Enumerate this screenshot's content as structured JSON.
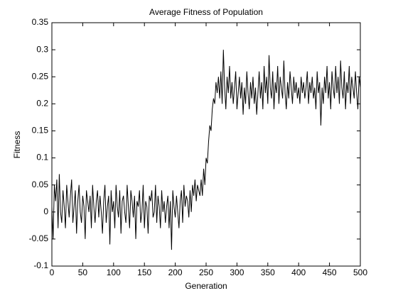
{
  "chart_data": {
    "type": "line",
    "title": "Average Fitness of Population",
    "x_label": "Generation",
    "y_label": "Fitness",
    "color": "#000000",
    "xlim": [
      0,
      500
    ],
    "xticks": [
      0,
      50,
      100,
      150,
      200,
      250,
      300,
      350,
      400,
      450,
      500
    ],
    "ylim": [
      -0.1,
      0.35
    ],
    "yticks": [
      -0.1,
      -0.05,
      0,
      0.05,
      0.1,
      0.15,
      0.2,
      0.25,
      0.3,
      0.35
    ],
    "x": [
      0,
      2,
      4,
      6,
      8,
      10,
      12,
      14,
      16,
      18,
      20,
      22,
      24,
      26,
      28,
      30,
      32,
      34,
      36,
      38,
      40,
      42,
      44,
      46,
      48,
      50,
      52,
      54,
      56,
      58,
      60,
      62,
      64,
      66,
      68,
      70,
      72,
      74,
      76,
      78,
      80,
      82,
      84,
      86,
      88,
      90,
      92,
      94,
      96,
      98,
      100,
      102,
      104,
      106,
      108,
      110,
      112,
      114,
      116,
      118,
      120,
      122,
      124,
      126,
      128,
      130,
      132,
      134,
      136,
      138,
      140,
      142,
      144,
      146,
      148,
      150,
      152,
      154,
      156,
      158,
      160,
      162,
      164,
      166,
      168,
      170,
      172,
      174,
      176,
      178,
      180,
      182,
      184,
      186,
      188,
      190,
      192,
      194,
      196,
      198,
      200,
      202,
      204,
      206,
      208,
      210,
      212,
      214,
      216,
      218,
      220,
      222,
      224,
      226,
      228,
      230,
      232,
      234,
      236,
      238,
      240,
      242,
      244,
      246,
      248,
      250,
      252,
      254,
      256,
      258,
      260,
      262,
      264,
      266,
      268,
      270,
      272,
      274,
      276,
      278,
      280,
      282,
      284,
      286,
      288,
      290,
      292,
      294,
      296,
      298,
      300,
      302,
      304,
      306,
      308,
      310,
      312,
      314,
      316,
      318,
      320,
      322,
      324,
      326,
      328,
      330,
      332,
      334,
      336,
      338,
      340,
      342,
      344,
      346,
      348,
      350,
      352,
      354,
      356,
      358,
      360,
      362,
      364,
      366,
      368,
      370,
      372,
      374,
      376,
      378,
      380,
      382,
      384,
      386,
      388,
      390,
      392,
      394,
      396,
      398,
      400,
      402,
      404,
      406,
      408,
      410,
      412,
      414,
      416,
      418,
      420,
      422,
      424,
      426,
      428,
      430,
      432,
      434,
      436,
      438,
      440,
      442,
      444,
      446,
      448,
      450,
      452,
      454,
      456,
      458,
      460,
      462,
      464,
      466,
      468,
      470,
      472,
      474,
      476,
      478,
      480,
      482,
      484,
      486,
      488,
      490,
      492,
      494,
      496,
      498,
      500
    ],
    "values": [
      0.01,
      -0.05,
      0.05,
      0.02,
      0.06,
      -0.03,
      0.07,
      0.0,
      -0.02,
      0.04,
      0.01,
      -0.03,
      0.05,
      0.02,
      -0.01,
      0.03,
      0.06,
      -0.02,
      0.01,
      0.04,
      -0.04,
      0.02,
      0.05,
      0.0,
      -0.02,
      0.03,
      0.01,
      -0.05,
      0.04,
      0.02,
      0.0,
      0.03,
      -0.03,
      0.05,
      0.01,
      -0.02,
      0.02,
      0.04,
      -0.01,
      0.03,
      0.0,
      -0.04,
      0.02,
      0.05,
      -0.02,
      0.01,
      0.03,
      -0.06,
      0.04,
      0.0,
      0.02,
      -0.03,
      0.05,
      0.01,
      -0.01,
      0.04,
      -0.04,
      0.02,
      0.03,
      0.0,
      -0.02,
      0.05,
      0.01,
      -0.03,
      0.04,
      0.02,
      -0.01,
      0.03,
      -0.05,
      0.02,
      0.01,
      0.04,
      -0.02,
      0.0,
      0.05,
      -0.03,
      0.02,
      0.01,
      -0.04,
      0.03,
      0.02,
      0.04,
      -0.01,
      0.0,
      0.05,
      -0.02,
      0.03,
      0.01,
      -0.03,
      0.04,
      0.0,
      0.02,
      -0.02,
      0.01,
      0.03,
      -0.03,
      0.02,
      -0.07,
      0.04,
      0.01,
      -0.01,
      0.03,
      0.0,
      -0.03,
      0.02,
      0.04,
      -0.02,
      0.05,
      0.01,
      0.03,
      0.02,
      -0.01,
      0.04,
      0.0,
      0.05,
      0.03,
      0.06,
      0.02,
      0.05,
      0.04,
      0.03,
      0.06,
      0.03,
      0.08,
      0.05,
      0.1,
      0.09,
      0.13,
      0.16,
      0.15,
      0.19,
      0.21,
      0.2,
      0.24,
      0.22,
      0.25,
      0.21,
      0.26,
      0.2,
      0.3,
      0.23,
      0.19,
      0.25,
      0.22,
      0.27,
      0.21,
      0.24,
      0.2,
      0.23,
      0.26,
      0.19,
      0.22,
      0.25,
      0.21,
      0.24,
      0.18,
      0.23,
      0.2,
      0.26,
      0.22,
      0.19,
      0.24,
      0.21,
      0.25,
      0.2,
      0.23,
      0.18,
      0.22,
      0.26,
      0.21,
      0.24,
      0.19,
      0.27,
      0.22,
      0.25,
      0.2,
      0.29,
      0.23,
      0.21,
      0.26,
      0.19,
      0.24,
      0.22,
      0.27,
      0.2,
      0.25,
      0.23,
      0.21,
      0.28,
      0.22,
      0.19,
      0.24,
      0.21,
      0.26,
      0.23,
      0.2,
      0.25,
      0.22,
      0.24,
      0.21,
      0.23,
      0.2,
      0.25,
      0.22,
      0.24,
      0.21,
      0.23,
      0.26,
      0.2,
      0.24,
      0.22,
      0.25,
      0.21,
      0.23,
      0.19,
      0.26,
      0.22,
      0.24,
      0.16,
      0.23,
      0.2,
      0.25,
      0.22,
      0.27,
      0.21,
      0.24,
      0.19,
      0.26,
      0.23,
      0.21,
      0.27,
      0.22,
      0.25,
      0.2,
      0.28,
      0.23,
      0.21,
      0.26,
      0.19,
      0.24,
      0.22,
      0.27,
      0.2,
      0.25,
      0.23,
      0.21,
      0.26,
      0.22,
      0.19,
      0.25,
      0.23
    ]
  }
}
